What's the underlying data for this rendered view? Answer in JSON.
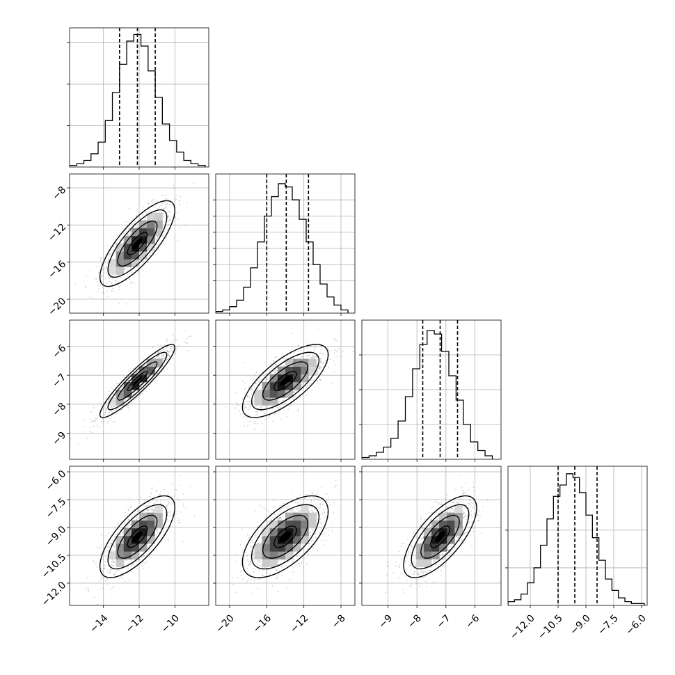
{
  "chart_data": {
    "type": "corner",
    "grid": true,
    "colors": {
      "hist": "#000000",
      "scatter": "#7f7f7f",
      "contour": "#000000",
      "grid": "#b0b0b0",
      "quantile": "#000000"
    },
    "params": [
      {
        "range": [
          -15.9,
          -8.1
        ],
        "ticks": [
          -14,
          -12,
          -10
        ],
        "tick_labels": [
          "-14",
          "-12",
          "-10"
        ]
      },
      {
        "range": [
          -21.5,
          -6.5
        ],
        "ticks": [
          -20,
          -16,
          -12,
          -8
        ],
        "tick_labels": [
          "-20",
          "-16",
          "-12",
          "-8"
        ]
      },
      {
        "range": [
          -9.9,
          -5.1
        ],
        "ticks": [
          -9,
          -8,
          -7,
          -6
        ],
        "tick_labels": [
          "-9",
          "-8",
          "-7",
          "-6"
        ]
      },
      {
        "range": [
          -13.2,
          -5.7
        ],
        "ticks": [
          -12.0,
          -10.5,
          -9.0,
          -7.5,
          -6.0
        ],
        "tick_labels": [
          "-12.0",
          "-10.5",
          "-9.0",
          "-7.5",
          "-6.0"
        ]
      }
    ],
    "diagonal": [
      {
        "param": 0,
        "quantiles": [
          -13.1,
          -12.1,
          -11.1
        ],
        "bins": [
          -15.9,
          -15.5,
          -15.1,
          -14.7,
          -14.3,
          -13.9,
          -13.5,
          -13.1,
          -12.7,
          -12.3,
          -11.9,
          -11.5,
          -11.1,
          -10.7,
          -10.3,
          -9.9,
          -9.5,
          -9.1,
          -8.7,
          -8.3
        ],
        "counts": [
          1,
          2,
          4,
          8,
          15,
          28,
          45,
          62,
          76,
          80,
          73,
          58,
          42,
          26,
          16,
          9,
          4,
          2,
          1
        ],
        "ytick_values": [
          25,
          50,
          75
        ],
        "ymax": 84
      },
      {
        "param": 1,
        "quantiles": [
          -16.0,
          -13.9,
          -11.5
        ],
        "bins": [
          -21.5,
          -20.75,
          -20,
          -19.25,
          -18.5,
          -17.75,
          -17,
          -16.25,
          -15.5,
          -14.75,
          -14,
          -13.25,
          -12.5,
          -11.75,
          -11,
          -10.25,
          -9.5,
          -8.75,
          -8,
          -7.25
        ],
        "counts": [
          1,
          2,
          4,
          8,
          16,
          28,
          44,
          60,
          72,
          80,
          78,
          70,
          58,
          44,
          30,
          18,
          10,
          5,
          2
        ],
        "ytick_values": [
          20,
          30,
          40,
          50,
          60,
          70
        ],
        "ymax": 86
      },
      {
        "param": 2,
        "quantiles": [
          -7.8,
          -7.2,
          -6.6
        ],
        "bins": [
          -9.9,
          -9.65,
          -9.4,
          -9.15,
          -8.9,
          -8.65,
          -8.4,
          -8.15,
          -7.9,
          -7.65,
          -7.4,
          -7.15,
          -6.9,
          -6.65,
          -6.4,
          -6.15,
          -5.9,
          -5.65,
          -5.4
        ],
        "counts": [
          1,
          2,
          4,
          7,
          12,
          22,
          36,
          52,
          66,
          74,
          72,
          62,
          48,
          34,
          20,
          10,
          5,
          2
        ],
        "ytick_values": [
          20,
          40,
          60
        ],
        "ymax": 80
      },
      {
        "param": 3,
        "quantiles": [
          -10.5,
          -9.6,
          -8.4
        ],
        "bins": [
          -13.2,
          -12.85,
          -12.5,
          -12.15,
          -11.8,
          -11.45,
          -11.1,
          -10.75,
          -10.4,
          -10.05,
          -9.7,
          -9.35,
          -9.0,
          -8.65,
          -8.3,
          -7.95,
          -7.6,
          -7.25,
          -6.9,
          -6.55,
          -6.2,
          -5.85
        ],
        "counts": [
          2,
          3,
          6,
          12,
          20,
          32,
          46,
          58,
          64,
          70,
          68,
          60,
          48,
          36,
          24,
          14,
          8,
          4,
          2,
          1,
          1
        ],
        "ytick_values": [
          20,
          40
        ],
        "ymax": 74
      }
    ],
    "pairs": [
      {
        "x": 0,
        "y": 1,
        "mean": [
          -12.1,
          -14.0
        ],
        "sd": [
          1.0,
          2.2
        ],
        "rho": 0.78
      },
      {
        "x": 0,
        "y": 2,
        "mean": [
          -12.1,
          -7.2
        ],
        "sd": [
          1.0,
          0.6
        ],
        "rho": 0.92
      },
      {
        "x": 1,
        "y": 2,
        "mean": [
          -14.0,
          -7.2
        ],
        "sd": [
          2.2,
          0.6
        ],
        "rho": 0.72
      },
      {
        "x": 0,
        "y": 3,
        "mean": [
          -12.1,
          -9.5
        ],
        "sd": [
          1.0,
          1.05
        ],
        "rho": 0.72
      },
      {
        "x": 1,
        "y": 3,
        "mean": [
          -14.0,
          -9.5
        ],
        "sd": [
          2.2,
          1.05
        ],
        "rho": 0.62
      },
      {
        "x": 2,
        "y": 3,
        "mean": [
          -7.2,
          -9.5
        ],
        "sd": [
          0.6,
          1.05
        ],
        "rho": 0.7
      }
    ]
  }
}
